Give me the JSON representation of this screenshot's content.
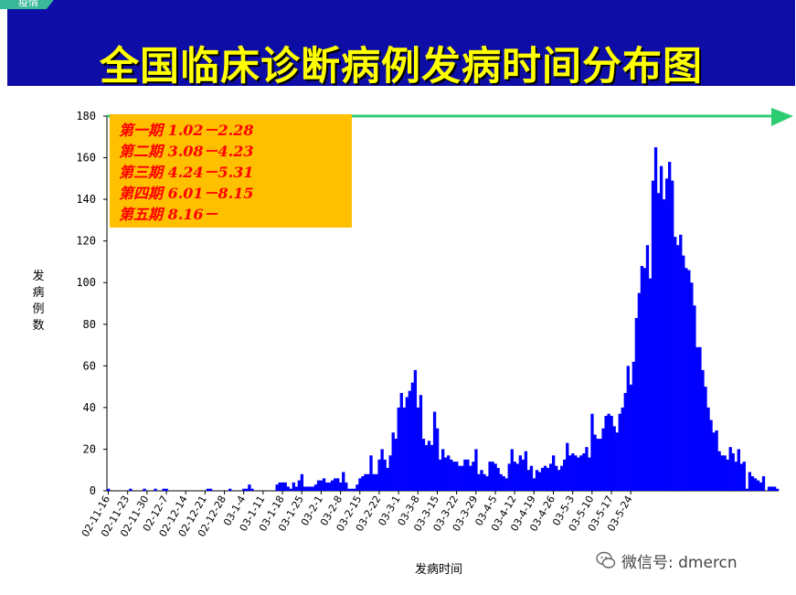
{
  "header": {
    "corner_tab": "疫情",
    "title": "全国临床诊断病例发病时间分布图",
    "banner_color": "#0e0ea6",
    "title_color": "#ffff00"
  },
  "legend_box": {
    "background": "#ffc000",
    "text_color": "#ff0000",
    "phases": [
      "第一期  1.02－2.28",
      "第二期  3.08－4.23",
      "第三期  4.24－5.31",
      "第四期  6.01－8.15",
      "第五期  8.16－"
    ]
  },
  "watermark": {
    "text": "微信号: dmercn",
    "icon": "wechat-icon"
  },
  "chart_data": {
    "type": "bar",
    "ylabel": "发病例数",
    "xlabel": "发病时间",
    "ylim": [
      0,
      180
    ],
    "yticks": [
      0,
      20,
      40,
      60,
      80,
      100,
      120,
      140,
      160,
      180
    ],
    "bar_color": "#0000ff",
    "arrow_color": "#2ecc71",
    "x_start": "2002-11-16",
    "xtick_labels": [
      "02-11-16",
      "02-11-23",
      "02-11-30",
      "02-12-7",
      "02-12-14",
      "02-12-21",
      "02-12-28",
      "03-1-4",
      "03-1-11",
      "03-1-18",
      "03-1-25",
      "03-2-1",
      "03-2-8",
      "03-2-15",
      "03-2-22",
      "03-3-1",
      "03-3-8",
      "03-3-15",
      "03-3-22",
      "03-3-29",
      "03-4-5",
      "03-4-12",
      "03-4-19",
      "03-4-26",
      "03-5-3",
      "03-5-10",
      "03-5-17",
      "03-5-24"
    ],
    "values": [
      1,
      0,
      0,
      0,
      0,
      0,
      0,
      0,
      1,
      0,
      0,
      0,
      0,
      1,
      0,
      0,
      0,
      1,
      0,
      0,
      1,
      1,
      0,
      0,
      0,
      0,
      0,
      0,
      0,
      0,
      0,
      0,
      0,
      0,
      0,
      0,
      1,
      1,
      0,
      0,
      0,
      0,
      0,
      0,
      1,
      0,
      0,
      0,
      0,
      1,
      1,
      3,
      1,
      0,
      0,
      0,
      0,
      0,
      0,
      0,
      0,
      3,
      4,
      4,
      4,
      2,
      1,
      4,
      2,
      5,
      8,
      2,
      2,
      2,
      2,
      3,
      5,
      5,
      6,
      4,
      4,
      5,
      6,
      6,
      4,
      9,
      4,
      1,
      1,
      1,
      3,
      6,
      7,
      8,
      8,
      17,
      8,
      8,
      15,
      20,
      15,
      11,
      17,
      28,
      25,
      40,
      47,
      40,
      45,
      48,
      52,
      58,
      40,
      46,
      25,
      22,
      24,
      22,
      38,
      30,
      15,
      20,
      16,
      17,
      15,
      14,
      14,
      12,
      12,
      15,
      15,
      12,
      14,
      20,
      8,
      10,
      8,
      7,
      14,
      14,
      13,
      11,
      8,
      7,
      6,
      13,
      20,
      14,
      13,
      17,
      15,
      19,
      10,
      12,
      6,
      10,
      9,
      11,
      12,
      11,
      13,
      17,
      12,
      10,
      12,
      15,
      23,
      17,
      18,
      17,
      16,
      17,
      18,
      21,
      16,
      37,
      27,
      25,
      25,
      30,
      36,
      37,
      36,
      31,
      28,
      37,
      40,
      47,
      60,
      51,
      62,
      83,
      95,
      108,
      107,
      118,
      102,
      149,
      165,
      143,
      156,
      140,
      150,
      158,
      149,
      122,
      118,
      123,
      113,
      107,
      106,
      100,
      89,
      69,
      69,
      58,
      50,
      40,
      34,
      28,
      29,
      19,
      17,
      17,
      15,
      21,
      18,
      14,
      20,
      13,
      14,
      1,
      9,
      7,
      6,
      5,
      4,
      7,
      0,
      2,
      2,
      2,
      1
    ]
  }
}
